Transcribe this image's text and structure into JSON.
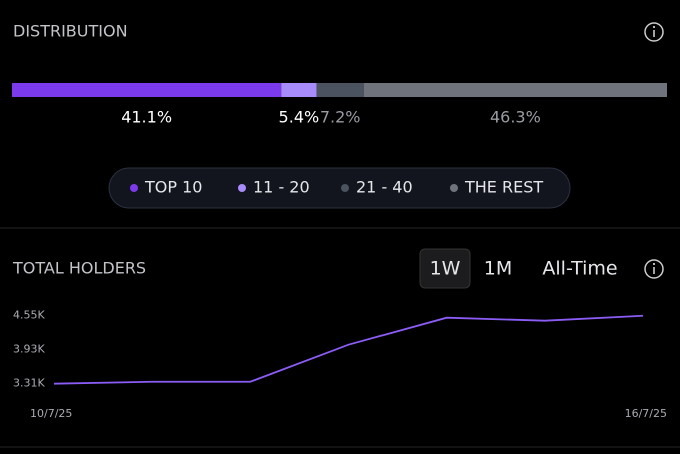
{
  "chart_data": [
    {
      "type": "stacked-bar",
      "title": "DISTRIBUTION",
      "xlim": [
        0,
        100
      ],
      "series": [
        {
          "name": "TOP 10",
          "color": "#7c3aed",
          "label_color": "#ffffff",
          "values": [
            41.1
          ],
          "value_labels": [
            "41.1%"
          ]
        },
        {
          "name": "11 - 20",
          "color": "#a78bfa",
          "label_color": "#ffffff",
          "values": [
            5.4
          ],
          "value_labels": [
            "5.4%"
          ]
        },
        {
          "name": "21 - 40",
          "color": "#4b5260",
          "label_color": "#9a9ca3",
          "values": [
            7.2
          ],
          "value_labels": [
            "7.2%"
          ]
        },
        {
          "name": "THE REST",
          "color": "#6e737c",
          "label_color": "#9a9ca3",
          "values": [
            46.3
          ],
          "value_labels": [
            "46.3%"
          ]
        }
      ]
    },
    {
      "type": "line",
      "title": "TOTAL HOLDERS",
      "color": "#8b5cf6",
      "x": [
        "10/7/25",
        null,
        null,
        null,
        null,
        null,
        "16/7/25"
      ],
      "values": [
        3310,
        3346,
        3346,
        4022,
        4514,
        4460,
        4550
      ],
      "ylim": [
        3250,
        4600
      ],
      "yticks": [
        {
          "value": 3310,
          "label": "3.31K"
        },
        {
          "value": 3930,
          "label": "3.93K"
        },
        {
          "value": 4550,
          "label": "4.55K"
        }
      ]
    }
  ],
  "tabs": [
    "1W",
    "1M",
    "All-Time"
  ],
  "active_tab": 0
}
